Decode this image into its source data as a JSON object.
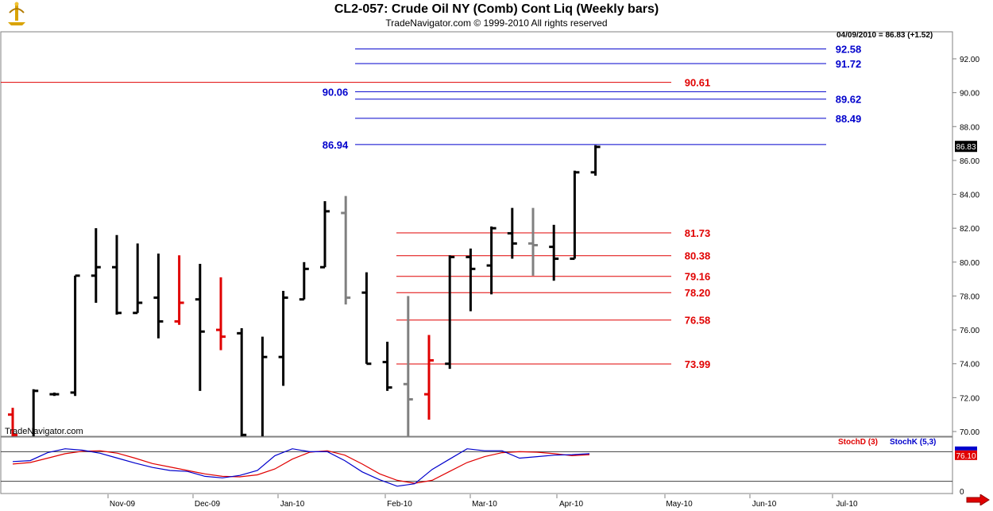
{
  "header": {
    "title": "CL2-057:  Crude Oil NY (Comb) Cont Liq  (Weekly bars)",
    "subtitle": "TradeNavigator.com © 1999-2010 All rights reserved",
    "last_quote": "04/09/2010 = 86.83 (+1.52)",
    "watermark": "TradeNavigator.com",
    "logo_icon": "tradenavigator-logo-icon",
    "scroll_icon": "scroll-right-arrow-icon"
  },
  "chart_data": [
    {
      "type": "ohlc",
      "title": "CL2-057:  Crude Oil NY (Comb) Cont Liq  (Weekly bars)",
      "ylim": [
        69.5,
        93.5
      ],
      "y_ticks": [
        70,
        72,
        74,
        76,
        78,
        80,
        82,
        84,
        86,
        88,
        90,
        92
      ],
      "y_tick_labels": [
        "70.00",
        "72.00",
        "74.00",
        "76.00",
        "78.00",
        "80.00",
        "82.00",
        "84.00",
        "86.00",
        "88.00",
        "90.00",
        "92.00"
      ],
      "x_labels": [
        "Nov-09",
        "Dec-09",
        "Jan-10",
        "Feb-10",
        "Mar-10",
        "Apr-10",
        "May-10",
        "Jun-10",
        "Jul-10"
      ],
      "last_price": "86.83",
      "colors": {
        "up": "#000000",
        "down": "#e00000",
        "neutral": "#808080",
        "red_level": "#e00000",
        "blue_level": "#0000cc"
      },
      "bars": [
        {
          "o": 71.0,
          "h": 71.4,
          "l": 69.5,
          "c": 69.8,
          "color": "down"
        },
        {
          "o": 69.6,
          "h": 72.5,
          "l": 69.5,
          "c": 72.4,
          "color": "up"
        },
        {
          "o": 72.2,
          "h": 72.3,
          "l": 72.1,
          "c": 72.2,
          "color": "up"
        },
        {
          "o": 72.3,
          "h": 79.2,
          "l": 72.1,
          "c": 79.2,
          "color": "up"
        },
        {
          "o": 79.2,
          "h": 82.0,
          "l": 77.6,
          "c": 79.7,
          "color": "up"
        },
        {
          "o": 79.7,
          "h": 81.6,
          "l": 76.9,
          "c": 77.0,
          "color": "up"
        },
        {
          "o": 77.0,
          "h": 81.1,
          "l": 77.0,
          "c": 77.6,
          "color": "up"
        },
        {
          "o": 77.9,
          "h": 80.5,
          "l": 75.5,
          "c": 76.5,
          "color": "up"
        },
        {
          "o": 76.5,
          "h": 80.4,
          "l": 76.3,
          "c": 77.6,
          "color": "down"
        },
        {
          "o": 77.8,
          "h": 79.9,
          "l": 72.4,
          "c": 75.9,
          "color": "up"
        },
        {
          "o": 76.0,
          "h": 79.1,
          "l": 74.8,
          "c": 75.6,
          "color": "down"
        },
        {
          "o": 75.8,
          "h": 76.1,
          "l": 69.5,
          "c": 69.8,
          "color": "up"
        },
        {
          "o": 69.6,
          "h": 75.6,
          "l": 69.5,
          "c": 74.4,
          "color": "up"
        },
        {
          "o": 74.4,
          "h": 78.3,
          "l": 72.7,
          "c": 77.9,
          "color": "up"
        },
        {
          "o": 77.8,
          "h": 80.0,
          "l": 77.8,
          "c": 79.6,
          "color": "up"
        },
        {
          "o": 79.7,
          "h": 83.6,
          "l": 79.7,
          "c": 83.0,
          "color": "up"
        },
        {
          "o": 82.9,
          "h": 83.9,
          "l": 77.5,
          "c": 77.9,
          "color": "neutral"
        },
        {
          "o": 78.2,
          "h": 79.4,
          "l": 74.0,
          "c": 74.0,
          "color": "up"
        },
        {
          "o": 74.1,
          "h": 75.3,
          "l": 72.4,
          "c": 72.6,
          "color": "up"
        },
        {
          "o": 72.8,
          "h": 78.0,
          "l": 69.5,
          "c": 71.9,
          "color": "neutral"
        },
        {
          "o": 72.2,
          "h": 75.7,
          "l": 70.7,
          "c": 74.2,
          "color": "down"
        },
        {
          "o": 74.0,
          "h": 80.4,
          "l": 73.7,
          "c": 80.3,
          "color": "up"
        },
        {
          "o": 80.3,
          "h": 80.8,
          "l": 77.1,
          "c": 79.6,
          "color": "up"
        },
        {
          "o": 79.8,
          "h": 82.1,
          "l": 78.1,
          "c": 82.0,
          "color": "up"
        },
        {
          "o": 81.7,
          "h": 83.2,
          "l": 80.2,
          "c": 81.1,
          "color": "up"
        },
        {
          "o": 81.1,
          "h": 83.2,
          "l": 79.2,
          "c": 81.0,
          "color": "neutral"
        },
        {
          "o": 80.9,
          "h": 82.2,
          "l": 78.9,
          "c": 80.2,
          "color": "up"
        },
        {
          "o": 80.2,
          "h": 85.4,
          "l": 80.2,
          "c": 85.3,
          "color": "up"
        },
        {
          "o": 85.3,
          "h": 86.9,
          "l": 85.1,
          "c": 86.8,
          "color": "up"
        }
      ],
      "red_levels": [
        {
          "label": "90.61",
          "value": 90.61
        },
        {
          "label": "81.73",
          "value": 81.73
        },
        {
          "label": "80.38",
          "value": 80.38
        },
        {
          "label": "79.16",
          "value": 79.16
        },
        {
          "label": "78.20",
          "value": 78.2
        },
        {
          "label": "76.58",
          "value": 76.58
        },
        {
          "label": "73.99",
          "value": 73.99
        }
      ],
      "blue_levels": [
        {
          "label": "92.58",
          "value": 92.58
        },
        {
          "label": "91.72",
          "value": 91.72
        },
        {
          "label": "90.06",
          "value": 90.06
        },
        {
          "label": "89.62",
          "value": 89.62
        },
        {
          "label": "88.49",
          "value": 88.49
        },
        {
          "label": "86.94",
          "value": 86.94
        }
      ]
    },
    {
      "type": "line",
      "legend": [
        "StochD (3)",
        "StochK (5,3)"
      ],
      "ylim": [
        -2,
        102
      ],
      "y_tick_label": "0",
      "last_value": "76.10",
      "reference_levels": [
        80,
        20
      ],
      "series": [
        {
          "name": "StochD (3)",
          "color": "#e00000",
          "values": [
            55,
            58,
            67,
            76,
            81,
            82,
            77,
            67,
            56,
            49,
            42,
            35,
            30,
            29,
            33,
            45,
            65,
            79,
            82,
            73,
            55,
            35,
            22,
            16,
            22,
            40,
            58,
            70,
            78,
            80,
            79,
            76,
            72,
            74
          ]
        },
        {
          "name": "StochK (5,3)",
          "color": "#0000cc",
          "values": [
            60,
            62,
            78,
            86,
            83,
            77,
            67,
            57,
            48,
            42,
            40,
            30,
            27,
            32,
            42,
            72,
            86,
            80,
            80,
            62,
            39,
            23,
            10,
            15,
            44,
            65,
            86,
            82,
            82,
            67,
            70,
            73,
            74,
            76
          ]
        }
      ]
    }
  ]
}
